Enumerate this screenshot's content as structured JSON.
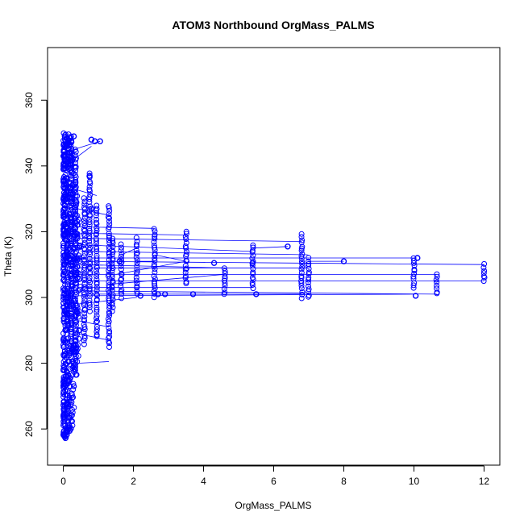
{
  "chart_data": {
    "type": "scatter",
    "title": "ATOM3 Northbound OrgMass_PALMS",
    "xlabel": "OrgMass_PALMS",
    "ylabel": "Theta (K)",
    "xlim": [
      -0.45,
      12.45
    ],
    "ylim": [
      249,
      376
    ],
    "x_ticks": [
      0,
      2,
      4,
      6,
      8,
      10,
      12
    ],
    "y_ticks": [
      260,
      280,
      300,
      320,
      340,
      360
    ],
    "marker": "open-circle",
    "connected": true,
    "grid": false,
    "legend": "none",
    "colors": {
      "series": "#0000ff",
      "axes": "#000000",
      "background": "#ffffff"
    },
    "dense_cluster": {
      "x_range": [
        0,
        0.5
      ],
      "y_range": [
        257,
        350
      ]
    },
    "columns": [
      {
        "x": 0.22,
        "y_range": [
          283,
          348
        ]
      },
      {
        "x": 0.35,
        "y_range": [
          278,
          345
        ]
      },
      {
        "x": 0.6,
        "y_range": [
          286,
          330
        ]
      },
      {
        "x": 0.75,
        "y_range": [
          296,
          338
        ]
      },
      {
        "x": 0.95,
        "y_range": [
          288,
          328
        ]
      },
      {
        "x": 1.3,
        "y_range": [
          285,
          328
        ]
      },
      {
        "x": 1.4,
        "y_range": [
          296,
          318
        ]
      },
      {
        "x": 1.65,
        "y_range": [
          300,
          316
        ]
      },
      {
        "x": 2.1,
        "y_range": [
          301,
          318
        ]
      },
      {
        "x": 2.6,
        "y_range": [
          300,
          321
        ]
      },
      {
        "x": 3.5,
        "y_range": [
          304,
          320
        ]
      },
      {
        "x": 4.6,
        "y_range": [
          301,
          309
        ]
      },
      {
        "x": 5.4,
        "y_range": [
          303,
          316
        ]
      },
      {
        "x": 6.8,
        "y_range": [
          300,
          319
        ]
      },
      {
        "x": 7.0,
        "y_range": [
          300,
          312
        ]
      },
      {
        "x": 10.0,
        "y_range": [
          303,
          312
        ]
      },
      {
        "x": 10.65,
        "y_range": [
          301,
          307
        ]
      },
      {
        "x": 12.0,
        "y_range": [
          305,
          310
        ]
      }
    ],
    "scattered_points": [
      {
        "x": 0.8,
        "y": 348
      },
      {
        "x": 0.9,
        "y": 347.5
      },
      {
        "x": 1.05,
        "y": 347.5
      },
      {
        "x": 0.3,
        "y": 349
      },
      {
        "x": 0.2,
        "y": 348.5
      },
      {
        "x": 6.4,
        "y": 315.5
      },
      {
        "x": 8.0,
        "y": 311
      },
      {
        "x": 10.1,
        "y": 312
      },
      {
        "x": 10.05,
        "y": 300.5
      },
      {
        "x": 5.5,
        "y": 301
      },
      {
        "x": 3.7,
        "y": 301
      },
      {
        "x": 2.9,
        "y": 301
      },
      {
        "x": 4.3,
        "y": 310.5
      },
      {
        "x": 5.4,
        "y": 310.5
      },
      {
        "x": 0.75,
        "y": 337
      },
      {
        "x": 0.8,
        "y": 327
      },
      {
        "x": 1.6,
        "y": 311
      },
      {
        "x": 2.7,
        "y": 301
      },
      {
        "x": 2.2,
        "y": 300.5
      }
    ],
    "connecting_lines": [
      {
        "from": [
          0.3,
          311
        ],
        "to": [
          12.0,
          310
        ]
      },
      {
        "from": [
          0.3,
          305
        ],
        "to": [
          12.0,
          305
        ]
      },
      {
        "from": [
          0.3,
          302
        ],
        "to": [
          10.65,
          301
        ]
      },
      {
        "from": [
          0.3,
          307
        ],
        "to": [
          10.65,
          307
        ]
      },
      {
        "from": [
          0.3,
          312
        ],
        "to": [
          10.0,
          312
        ]
      },
      {
        "from": [
          0.3,
          300.5
        ],
        "to": [
          10.0,
          301
        ]
      },
      {
        "from": [
          0.4,
          309
        ],
        "to": [
          7.0,
          309
        ]
      },
      {
        "from": [
          0.4,
          318
        ],
        "to": [
          6.8,
          317
        ]
      },
      {
        "from": [
          0.5,
          319.5
        ],
        "to": [
          3.5,
          319
        ]
      },
      {
        "from": [
          0.4,
          321.5
        ],
        "to": [
          2.6,
          321
        ]
      },
      {
        "from": [
          0.5,
          316
        ],
        "to": [
          5.4,
          314
        ]
      },
      {
        "from": [
          0.5,
          314
        ],
        "to": [
          7.0,
          313
        ]
      },
      {
        "from": [
          0.5,
          303
        ],
        "to": [
          5.4,
          303
        ]
      },
      {
        "from": [
          0.4,
          310
        ],
        "to": [
          4.6,
          309
        ]
      },
      {
        "from": [
          1.3,
          304
        ],
        "to": [
          4.6,
          307
        ]
      },
      {
        "from": [
          1.5,
          307
        ],
        "to": [
          3.5,
          311
        ]
      },
      {
        "from": [
          0.4,
          298
        ],
        "to": [
          2.1,
          300
        ]
      },
      {
        "from": [
          0.4,
          293
        ],
        "to": [
          1.3,
          291
        ]
      },
      {
        "from": [
          0.4,
          289
        ],
        "to": [
          1.3,
          287
        ]
      },
      {
        "from": [
          0.4,
          280
        ],
        "to": [
          1.3,
          280.5
        ]
      },
      {
        "from": [
          0.4,
          327
        ],
        "to": [
          1.3,
          325
        ]
      },
      {
        "from": [
          0.3,
          342
        ],
        "to": [
          0.8,
          346
        ]
      },
      {
        "from": [
          0.3,
          345
        ],
        "to": [
          1.05,
          347.5
        ]
      },
      {
        "from": [
          0.3,
          333
        ],
        "to": [
          0.95,
          331
        ]
      },
      {
        "from": [
          1.65,
          313
        ],
        "to": [
          2.1,
          315
        ]
      },
      {
        "from": [
          2.6,
          313
        ],
        "to": [
          3.5,
          311
        ]
      },
      {
        "from": [
          6.4,
          315.5
        ],
        "to": [
          5.4,
          315
        ]
      },
      {
        "from": [
          8.0,
          311
        ],
        "to": [
          7.0,
          311
        ]
      },
      {
        "from": [
          2.1,
          311
        ],
        "to": [
          2.6,
          311
        ]
      },
      {
        "from": [
          0.6,
          301
        ],
        "to": [
          6.8,
          301
        ]
      }
    ]
  }
}
